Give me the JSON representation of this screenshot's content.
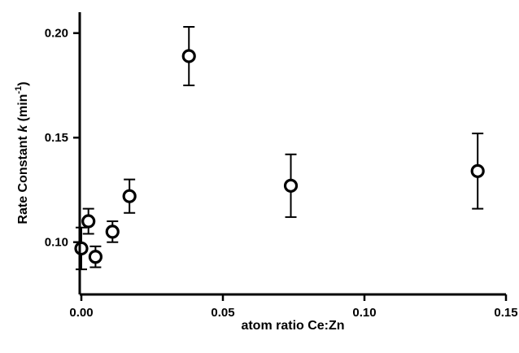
{
  "chart_data": {
    "type": "scatter",
    "title": "",
    "xlabel": "atom ratio Ce:Zn",
    "ylabel": {
      "prefix": "Rate Constant ",
      "var": "k",
      "unit_open": " (min",
      "unit_sup": "-1",
      "unit_close": ")"
    },
    "xlim": [
      0,
      0.15
    ],
    "ylim": [
      0.075,
      0.21
    ],
    "xticks": [
      0.0,
      0.05,
      0.1,
      0.15
    ],
    "xtick_labels": [
      "0.00",
      "0.05",
      "0.10",
      "0.15"
    ],
    "yticks": [
      0.1,
      0.15,
      0.2
    ],
    "ytick_labels": [
      "0.10",
      "0.15",
      "0.20"
    ],
    "grid": false,
    "legend": "none",
    "marker": "open-circle",
    "points": [
      {
        "x": 0.0,
        "y": 0.097,
        "err": 0.01
      },
      {
        "x": 0.0025,
        "y": 0.11,
        "err": 0.006
      },
      {
        "x": 0.005,
        "y": 0.093,
        "err": 0.005
      },
      {
        "x": 0.011,
        "y": 0.105,
        "err": 0.005
      },
      {
        "x": 0.017,
        "y": 0.122,
        "err": 0.008
      },
      {
        "x": 0.038,
        "y": 0.189,
        "err": 0.014
      },
      {
        "x": 0.074,
        "y": 0.127,
        "err": 0.015
      },
      {
        "x": 0.14,
        "y": 0.134,
        "err": 0.018
      }
    ]
  }
}
